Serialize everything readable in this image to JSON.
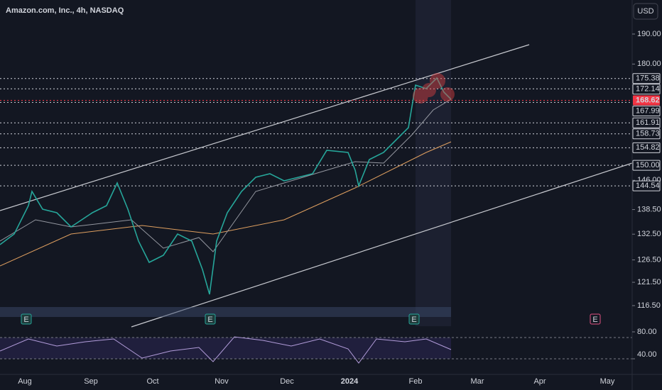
{
  "header": {
    "title": "Amazon.com, Inc., 4h, NASDAQ",
    "currency": "USD"
  },
  "price_axis": {
    "log": true,
    "ticks": [
      {
        "value": 190,
        "label": "190.00"
      },
      {
        "value": 180,
        "label": "180.00"
      },
      {
        "value": 146,
        "label": "146.00"
      },
      {
        "value": 138.5,
        "label": "138.50"
      },
      {
        "value": 132.5,
        "label": "132.50"
      },
      {
        "value": 126.5,
        "label": "126.50"
      },
      {
        "value": 121.5,
        "label": "121.50"
      },
      {
        "value": 116.5,
        "label": "116.50"
      }
    ],
    "levels": [
      175.38,
      172.14,
      168.62,
      167.99,
      161.91,
      158.73,
      154.82,
      {
        "value": 150,
        "label": "150.00"
      },
      144.54
    ],
    "current_price": 168.62
  },
  "time_axis": [
    "Aug",
    "Sep",
    "Oct",
    "Nov",
    "Dec",
    "2024",
    "Feb",
    "Mar",
    "Apr",
    "May"
  ],
  "rsi_axis": [
    {
      "value": 80,
      "label": "80.00"
    },
    {
      "value": 40,
      "label": "40.00"
    }
  ],
  "events": [
    "E",
    "E",
    "E",
    "E"
  ]
}
